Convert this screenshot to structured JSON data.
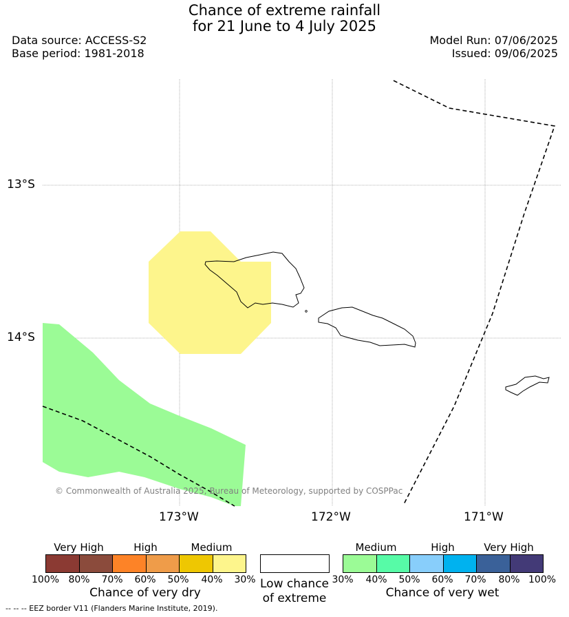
{
  "title": {
    "line1": "Chance of extreme rainfall",
    "line2": "for 21 June to 4 July 2025"
  },
  "header": {
    "data_source": "Data source: ACCESS-S2",
    "base_period": "Base period: 1981-2018",
    "model_run": "Model Run: 07/06/2025",
    "issued": "Issued: 09/06/2025"
  },
  "map": {
    "lat_labels": [
      "13°S",
      "14°S"
    ],
    "lon_labels": [
      "173°W",
      "172°W",
      "171°W"
    ],
    "copyright": "© Commonwealth of Australia 2025, Bureau of Meteorology, supported by COSPPac",
    "regions": [
      {
        "category": "medium-dry",
        "color": "#fdf58c"
      },
      {
        "category": "medium-wet",
        "color": "#9bfb96"
      }
    ],
    "eez_line_style": "dashed"
  },
  "legend": {
    "dry": {
      "title": "Chance of very dry",
      "group_labels": [
        "Very High",
        "High",
        "Medium"
      ],
      "ticks": [
        "100%",
        "80%",
        "70%",
        "60%",
        "50%",
        "40%",
        "30%"
      ],
      "colors": [
        "#8b3a33",
        "#8b4b3c",
        "#fd8327",
        "#ef9c49",
        "#eec702",
        "#fdf58c"
      ]
    },
    "low": {
      "line1": "Low chance",
      "line2": "of extreme"
    },
    "wet": {
      "title": "Chance of very wet",
      "group_labels": [
        "Medium",
        "High",
        "Very High"
      ],
      "ticks": [
        "30%",
        "40%",
        "50%",
        "60%",
        "70%",
        "80%",
        "100%"
      ],
      "colors": [
        "#9bfb96",
        "#57fba7",
        "#88cefb",
        "#00b2ef",
        "#3a6199",
        "#433a77"
      ]
    }
  },
  "footer": {
    "eez_note": "--  --  -- EEZ border V11 (Flanders Marine Institute, 2019)."
  }
}
